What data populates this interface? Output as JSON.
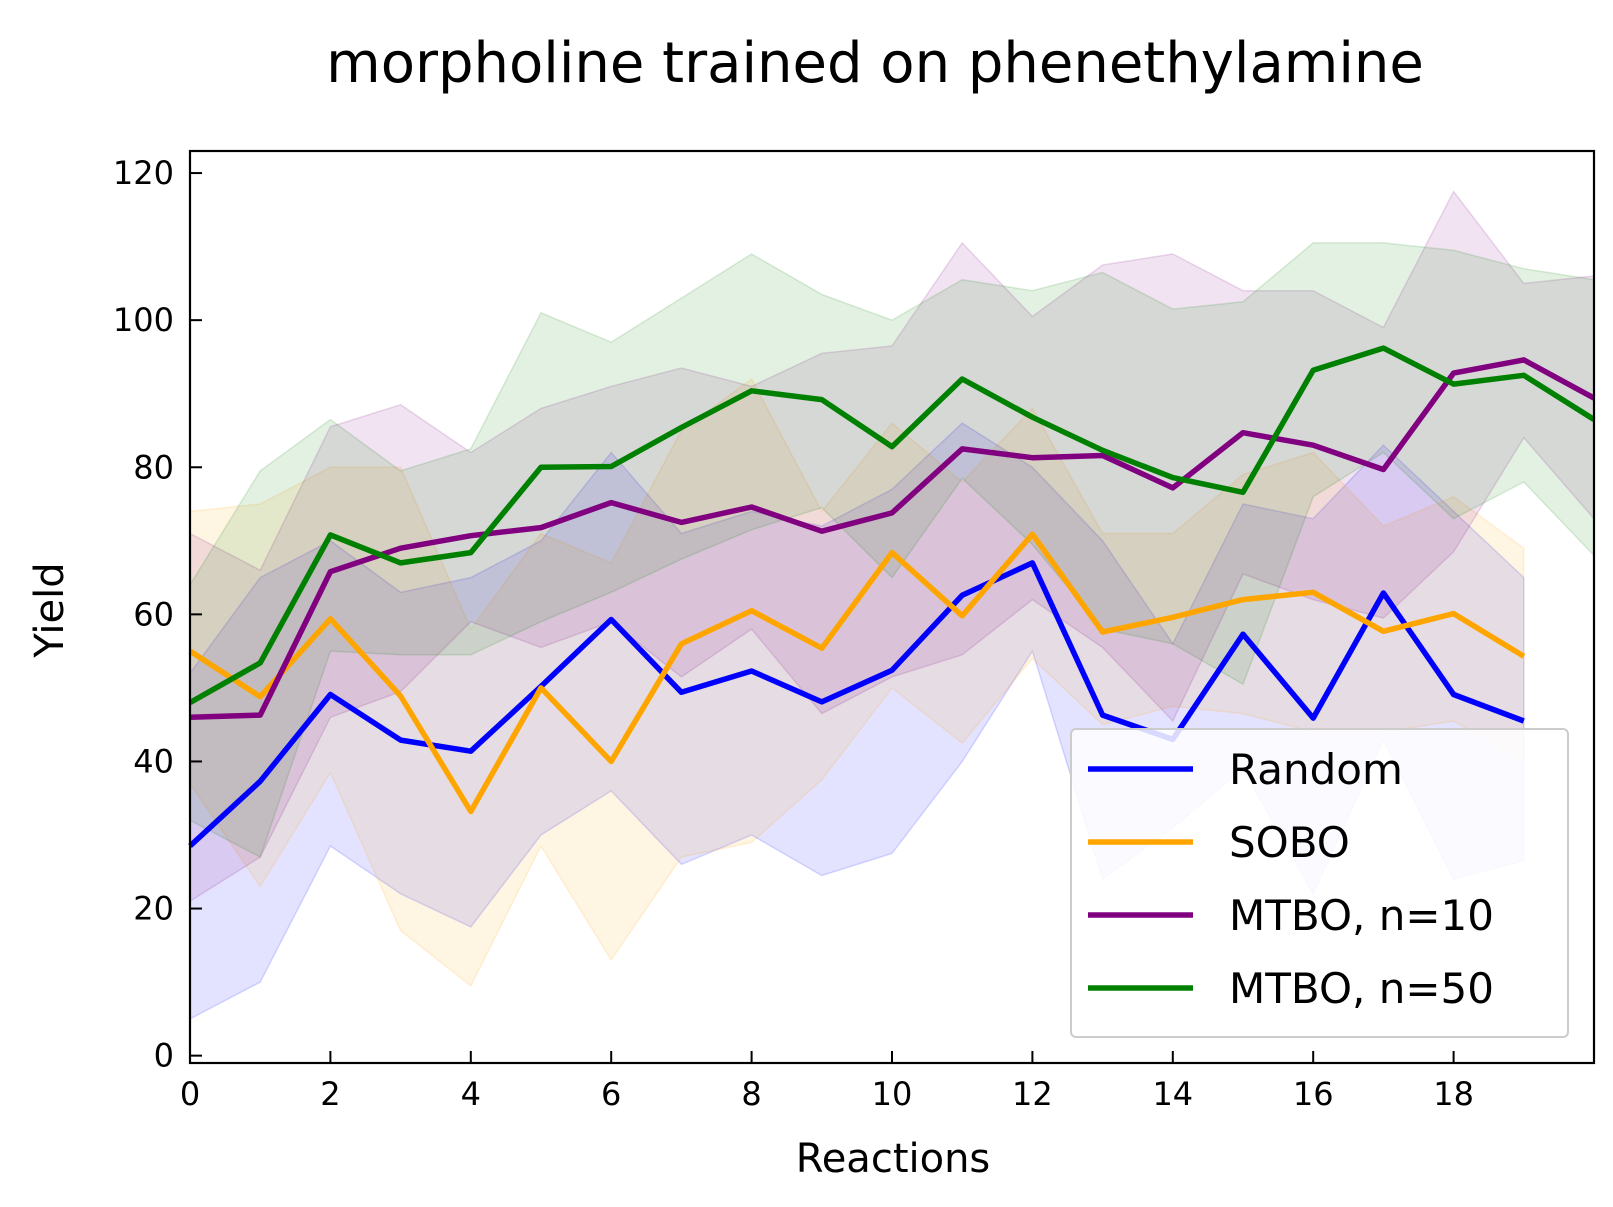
{
  "chart_data": {
    "type": "line",
    "title": "morpholine trained on phenethylamine",
    "xlabel": "Reactions",
    "ylabel": "Yield",
    "xlim": [
      0,
      20
    ],
    "ylim": [
      -1,
      123
    ],
    "xticks": [
      0,
      2,
      4,
      6,
      8,
      10,
      12,
      14,
      16,
      18
    ],
    "xtick_labels": [
      "0",
      "2",
      "4",
      "6",
      "8",
      "10",
      "12",
      "14",
      "16",
      "18"
    ],
    "yticks": [
      0,
      20,
      40,
      60,
      80,
      100,
      120
    ],
    "ytick_labels": [
      "0",
      "20",
      "40",
      "60",
      "80",
      "100",
      "120"
    ],
    "legend_position": "lower-right",
    "series": [
      {
        "name": "Random",
        "color": "#0000ff",
        "x": [
          0,
          1,
          2,
          3,
          4,
          5,
          6,
          7,
          8,
          9,
          10,
          11,
          12,
          13,
          14,
          15,
          16,
          17,
          18,
          19
        ],
        "values": [
          28.5,
          37.3,
          49.1,
          42.9,
          41.4,
          50.2,
          59.3,
          49.4,
          52.3,
          48.1,
          52.4,
          62.6,
          67.0,
          46.3,
          43.0,
          57.3,
          45.9,
          62.9,
          49.1,
          45.5
        ],
        "upper": [
          52,
          65,
          70,
          63,
          65,
          70,
          82,
          71,
          74,
          72,
          77,
          86,
          80,
          70,
          56,
          75,
          73,
          83,
          74,
          65
        ],
        "lower": [
          5,
          10,
          28.5,
          22,
          17.5,
          30,
          36,
          26,
          30,
          24.5,
          27.5,
          40,
          55,
          24,
          31,
          39,
          22,
          43,
          24,
          26.5
        ]
      },
      {
        "name": "SOBO",
        "color": "#ffa500",
        "x": [
          0,
          1,
          2,
          3,
          4,
          5,
          6,
          7,
          8,
          9,
          10,
          11,
          12,
          13,
          14,
          15,
          16,
          17,
          18,
          19
        ],
        "values": [
          55.0,
          48.8,
          59.4,
          48.9,
          33.2,
          50.0,
          40.0,
          56.0,
          60.5,
          55.4,
          68.4,
          59.8,
          70.9,
          57.6,
          59.6,
          62.0,
          63.0,
          57.7,
          60.1,
          54.3
        ],
        "upper": [
          74,
          75,
          80,
          80,
          58,
          71,
          67,
          85,
          92,
          74,
          86,
          78,
          88,
          71,
          71,
          79,
          82,
          72,
          76,
          69
        ],
        "lower": [
          37,
          23,
          38.5,
          17,
          9.5,
          28.5,
          13,
          27,
          29,
          37.5,
          50,
          42.5,
          54,
          45,
          47.5,
          46.5,
          44,
          44,
          45.5,
          40
        ]
      },
      {
        "name": "MTBO, n=10",
        "color": "#800080",
        "x": [
          0,
          1,
          2,
          3,
          4,
          5,
          6,
          7,
          8,
          9,
          10,
          11,
          12,
          13,
          14,
          15,
          16,
          17,
          18,
          19,
          20
        ],
        "values": [
          46.0,
          46.3,
          65.8,
          69.0,
          70.7,
          71.8,
          75.2,
          72.5,
          74.6,
          71.3,
          73.8,
          82.5,
          81.3,
          81.6,
          77.2,
          84.7,
          83.0,
          79.7,
          92.8,
          94.6,
          89.4
        ],
        "upper": [
          71,
          66,
          85.5,
          88.5,
          82,
          88,
          91,
          93.5,
          91,
          95.5,
          96.5,
          110.5,
          100.5,
          107.5,
          109,
          104,
          104,
          99,
          117.5,
          105,
          106
        ],
        "lower": [
          21,
          27,
          46,
          49.5,
          59,
          55.5,
          59,
          51.5,
          58,
          46.5,
          51.5,
          54.5,
          62,
          55.5,
          45.5,
          65.5,
          62,
          59.5,
          68.5,
          84,
          73
        ]
      },
      {
        "name": "MTBO, n=50",
        "color": "#008000",
        "x": [
          0,
          1,
          2,
          3,
          4,
          5,
          6,
          7,
          8,
          9,
          10,
          11,
          12,
          13,
          14,
          15,
          16,
          17,
          18,
          19,
          20
        ],
        "values": [
          48.0,
          53.4,
          70.8,
          67.0,
          68.4,
          80.0,
          80.1,
          85.4,
          90.4,
          89.2,
          82.8,
          92.0,
          86.8,
          82.3,
          78.6,
          76.6,
          93.2,
          96.2,
          91.3,
          92.5,
          86.5
        ],
        "upper": [
          64,
          79.5,
          86.5,
          79.5,
          82.5,
          101,
          97,
          103,
          109,
          103.5,
          100,
          105.5,
          104,
          106.5,
          101.5,
          102.5,
          110.5,
          110.5,
          109.5,
          107,
          105.5
        ],
        "lower": [
          32,
          27,
          55,
          54.5,
          54.5,
          59,
          63,
          67.5,
          71.5,
          74.5,
          65,
          78.5,
          69.5,
          58,
          56,
          50.5,
          76,
          82,
          73,
          78,
          68
        ]
      }
    ]
  }
}
